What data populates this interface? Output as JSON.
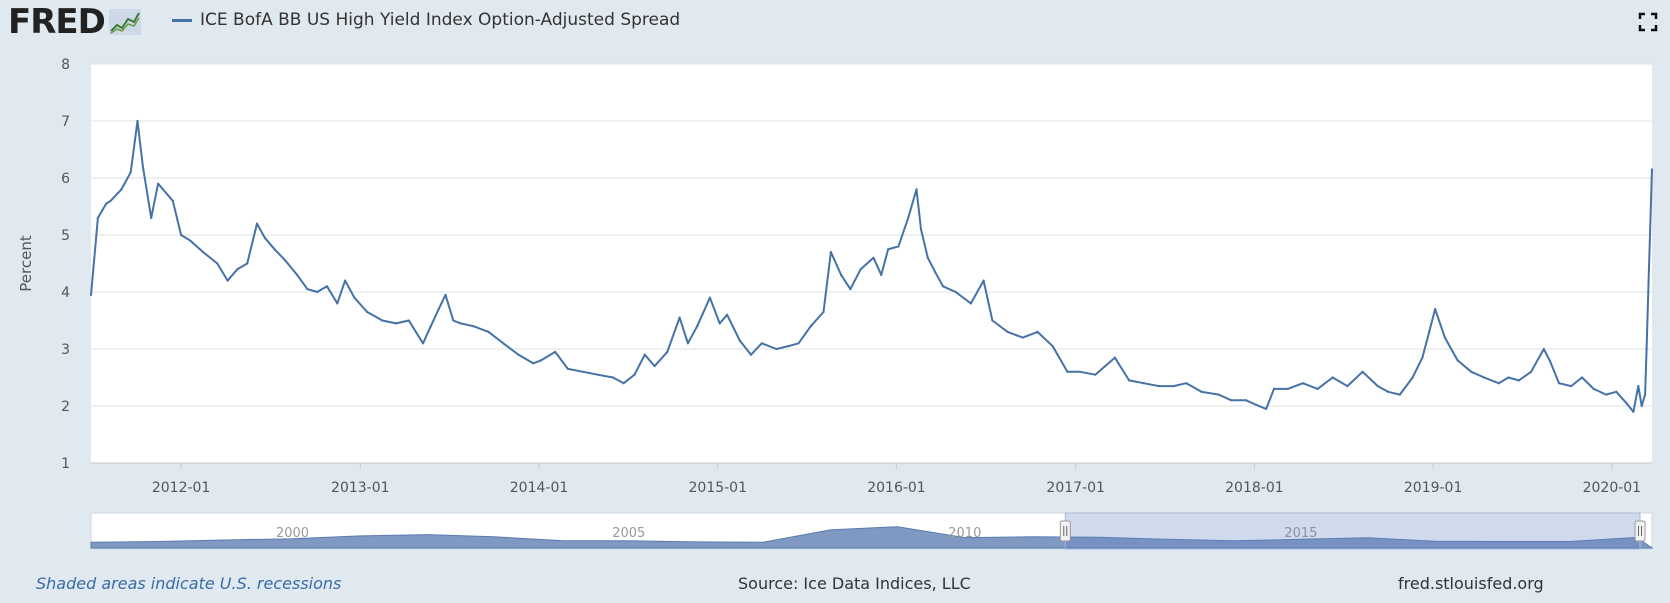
{
  "header": {
    "logo_text": "FRED",
    "series_title": "ICE BofA BB US High Yield Index Option-Adjusted Spread"
  },
  "colors": {
    "line": "#4572a7",
    "background": "#e1e9f0",
    "plot": "#ffffff"
  },
  "chart_data": {
    "type": "line",
    "ylabel": "Percent",
    "ylim": [
      1,
      8
    ],
    "yticks": [
      "1",
      "2",
      "3",
      "4",
      "5",
      "6",
      "7",
      "8"
    ],
    "xtick_labels": [
      "2012-01",
      "2013-01",
      "2014-01",
      "2015-01",
      "2016-01",
      "2017-01",
      "2018-01",
      "2019-01",
      "2020-01"
    ],
    "xlim": [
      "2011-07-01",
      "2020-03-23"
    ],
    "grid": "horizontal",
    "series": [
      {
        "name": "ICE BofA BB US High Yield Index Option-Adjusted Spread",
        "x": [
          "2011-07-01",
          "2011-07-15",
          "2011-08-01",
          "2011-08-10",
          "2011-09-01",
          "2011-09-20",
          "2011-10-04",
          "2011-10-15",
          "2011-11-01",
          "2011-11-15",
          "2011-11-25",
          "2011-12-15",
          "2012-01-01",
          "2012-01-20",
          "2012-02-15",
          "2012-03-15",
          "2012-04-05",
          "2012-04-25",
          "2012-05-15",
          "2012-06-04",
          "2012-06-20",
          "2012-07-10",
          "2012-08-01",
          "2012-08-25",
          "2012-09-15",
          "2012-10-05",
          "2012-10-25",
          "2012-11-15",
          "2012-12-01",
          "2012-12-20",
          "2013-01-15",
          "2013-02-15",
          "2013-03-15",
          "2013-04-10",
          "2013-05-09",
          "2013-05-25",
          "2013-06-10",
          "2013-06-24",
          "2013-07-10",
          "2013-07-25",
          "2013-08-20",
          "2013-09-20",
          "2013-10-20",
          "2013-11-20",
          "2013-12-20",
          "2014-01-05",
          "2014-02-03",
          "2014-03-01",
          "2014-04-01",
          "2014-05-01",
          "2014-06-01",
          "2014-06-23",
          "2014-07-15",
          "2014-08-05",
          "2014-08-25",
          "2014-09-20",
          "2014-10-15",
          "2014-11-01",
          "2014-11-20",
          "2014-12-16",
          "2015-01-05",
          "2015-01-20",
          "2015-02-15",
          "2015-03-10",
          "2015-04-01",
          "2015-05-01",
          "2015-05-25",
          "2015-06-15",
          "2015-07-10",
          "2015-08-05",
          "2015-08-20",
          "2015-09-10",
          "2015-09-29",
          "2015-10-20",
          "2015-11-15",
          "2015-12-01",
          "2015-12-15",
          "2016-01-05",
          "2016-01-25",
          "2016-02-11",
          "2016-02-20",
          "2016-03-05",
          "2016-03-20",
          "2016-04-05",
          "2016-05-01",
          "2016-06-01",
          "2016-06-27",
          "2016-07-15",
          "2016-08-15",
          "2016-09-15",
          "2016-10-15",
          "2016-11-15",
          "2016-12-15",
          "2017-01-10",
          "2017-02-10",
          "2017-03-22",
          "2017-04-20",
          "2017-05-20",
          "2017-06-20",
          "2017-07-20",
          "2017-08-15",
          "2017-09-15",
          "2017-10-20",
          "2017-11-15",
          "2017-12-15",
          "2018-01-10",
          "2018-01-25",
          "2018-02-10",
          "2018-03-10",
          "2018-04-10",
          "2018-05-10",
          "2018-06-10",
          "2018-07-10",
          "2018-08-10",
          "2018-09-10",
          "2018-10-01",
          "2018-10-25",
          "2018-11-20",
          "2018-12-10",
          "2018-12-24",
          "2019-01-05",
          "2019-01-25",
          "2019-02-20",
          "2019-03-20",
          "2019-04-15",
          "2019-05-15",
          "2019-06-04",
          "2019-06-25",
          "2019-07-20",
          "2019-08-15",
          "2019-08-27",
          "2019-09-15",
          "2019-10-10",
          "2019-11-01",
          "2019-11-25",
          "2019-12-20",
          "2020-01-10",
          "2020-01-31",
          "2020-02-14",
          "2020-02-24",
          "2020-03-02",
          "2020-03-09",
          "2020-03-12",
          "2020-03-16",
          "2020-03-20",
          "2020-03-23"
        ],
        "values": [
          3.95,
          5.3,
          5.55,
          5.6,
          5.8,
          6.1,
          7.0,
          6.2,
          5.3,
          5.9,
          5.8,
          5.6,
          5.0,
          4.9,
          4.7,
          4.5,
          4.2,
          4.4,
          4.5,
          5.2,
          4.95,
          4.75,
          4.55,
          4.3,
          4.05,
          4.0,
          4.1,
          3.8,
          4.2,
          3.9,
          3.65,
          3.5,
          3.45,
          3.5,
          3.1,
          3.4,
          3.7,
          3.95,
          3.5,
          3.45,
          3.4,
          3.3,
          3.1,
          2.9,
          2.75,
          2.8,
          2.95,
          2.65,
          2.6,
          2.55,
          2.5,
          2.4,
          2.55,
          2.9,
          2.7,
          2.95,
          3.55,
          3.1,
          3.4,
          3.9,
          3.45,
          3.6,
          3.15,
          2.9,
          3.1,
          3.0,
          3.05,
          3.1,
          3.4,
          3.65,
          4.7,
          4.3,
          4.05,
          4.4,
          4.6,
          4.3,
          4.75,
          4.8,
          5.3,
          5.8,
          5.1,
          4.6,
          4.35,
          4.1,
          4.0,
          3.8,
          4.2,
          3.5,
          3.3,
          3.2,
          3.3,
          3.05,
          2.6,
          2.6,
          2.55,
          2.85,
          2.45,
          2.4,
          2.35,
          2.35,
          2.4,
          2.25,
          2.2,
          2.1,
          2.1,
          2.0,
          1.95,
          2.3,
          2.3,
          2.4,
          2.3,
          2.5,
          2.35,
          2.6,
          2.35,
          2.25,
          2.2,
          2.5,
          2.85,
          3.3,
          3.7,
          3.2,
          2.8,
          2.6,
          2.5,
          2.4,
          2.5,
          2.45,
          2.6,
          3.0,
          2.8,
          2.4,
          2.35,
          2.5,
          2.3,
          2.2,
          2.25,
          2.05,
          1.9,
          2.35,
          2.0,
          2.2,
          3.0,
          4.2,
          5.3,
          6.15
        ]
      }
    ]
  },
  "navigator": {
    "year_labels": [
      "2000",
      "2005",
      "2010",
      "2015"
    ]
  },
  "footer": {
    "recessions_note": "Shaded areas indicate U.S. recessions",
    "source": "Source: Ice Data Indices, LLC",
    "url": "fred.stlouisfed.org"
  }
}
